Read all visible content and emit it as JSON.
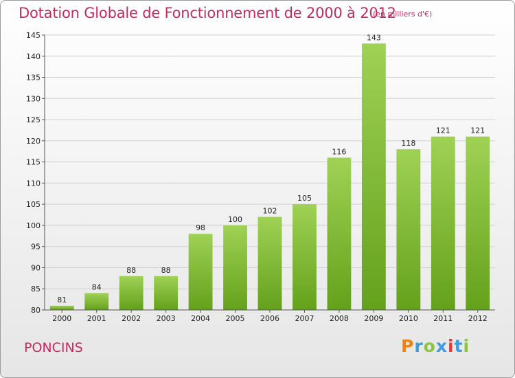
{
  "header": {
    "title": "Dotation Globale de Fonctionnement de 2000 à 2012",
    "subtitle": "(en milliers d'€)"
  },
  "footer": {
    "place": "PONCINS",
    "brand": "Proxiti",
    "brand_colors": [
      "#e8841a",
      "#3f9be0",
      "#8bc43f",
      "#3f9be0",
      "#e23b3b",
      "#3f9be0",
      "#8bc43f"
    ]
  },
  "colors": {
    "title": "#c8295f",
    "bar_top": "#9fd155",
    "bar_bottom": "#64a11b",
    "grid": "#d0d0d0",
    "axis": "#555555"
  },
  "chart_data": {
    "type": "bar",
    "title": "Dotation Globale de Fonctionnement de 2000 à 2012",
    "subtitle": "(en milliers d'€)",
    "xlabel": "",
    "ylabel": "",
    "categories": [
      "2000",
      "2001",
      "2002",
      "2003",
      "2004",
      "2005",
      "2006",
      "2007",
      "2008",
      "2009",
      "2010",
      "2011",
      "2012"
    ],
    "values": [
      81,
      84,
      88,
      88,
      98,
      100,
      102,
      105,
      116,
      143,
      118,
      121,
      121
    ],
    "ylim": [
      80,
      145
    ],
    "yticks": [
      80,
      85,
      90,
      95,
      100,
      105,
      110,
      115,
      120,
      125,
      130,
      135,
      140,
      145
    ],
    "grid": true,
    "legend": "none"
  }
}
